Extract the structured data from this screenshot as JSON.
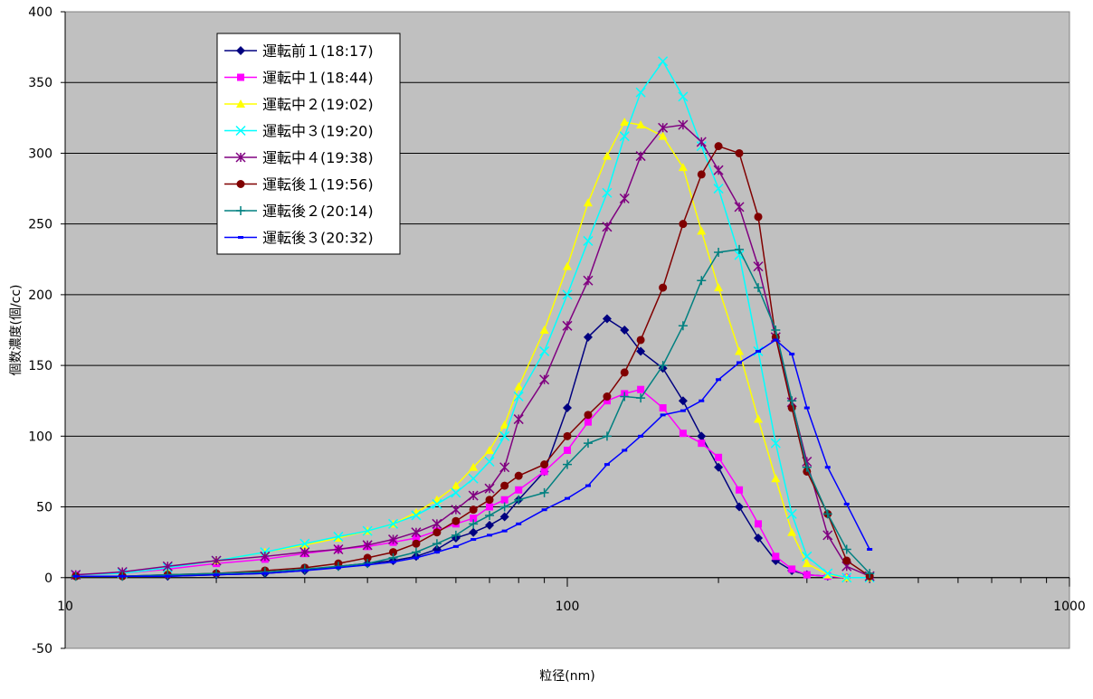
{
  "chart_data": {
    "type": "scatter",
    "xscale": "log",
    "xlim": [
      10,
      1000
    ],
    "ylim": [
      -50,
      400
    ],
    "xlabel": "粒径(nm)",
    "ylabel": "個数濃度(個/cc)",
    "xticks": [
      "10",
      "100",
      "1000"
    ],
    "yticks": [
      "-50",
      "0",
      "50",
      "100",
      "150",
      "200",
      "250",
      "300",
      "350",
      "400"
    ],
    "grid": true,
    "legend_position": "top-left",
    "plot_background": "#c0c0c0",
    "series": [
      {
        "name": "運転前１(18:17)",
        "color": "#000080",
        "marker": "diamond",
        "x": [
          10.5,
          13,
          16,
          20,
          25,
          30,
          35,
          40,
          45,
          50,
          55,
          60,
          65,
          70,
          75,
          80,
          90,
          100,
          110,
          120,
          130,
          140,
          155,
          170,
          185,
          200,
          220,
          240,
          260,
          280,
          300,
          330,
          360,
          400
        ],
        "y": [
          1,
          1,
          1,
          2,
          3,
          5,
          8,
          10,
          12,
          15,
          20,
          28,
          32,
          37,
          43,
          55,
          75,
          120,
          170,
          183,
          175,
          160,
          148,
          125,
          100,
          78,
          50,
          28,
          12,
          5,
          2,
          1,
          0,
          0
        ]
      },
      {
        "name": "運転中１(18:44)",
        "color": "#ff00ff",
        "marker": "square",
        "x": [
          10.5,
          13,
          16,
          20,
          25,
          30,
          35,
          40,
          45,
          50,
          55,
          60,
          65,
          70,
          75,
          80,
          90,
          100,
          110,
          120,
          130,
          140,
          155,
          170,
          185,
          200,
          220,
          240,
          260,
          280,
          300,
          330,
          360,
          400
        ],
        "y": [
          2,
          3,
          6,
          10,
          13,
          17,
          20,
          22,
          25,
          28,
          33,
          38,
          42,
          50,
          55,
          62,
          75,
          90,
          110,
          125,
          130,
          133,
          120,
          102,
          95,
          85,
          62,
          38,
          15,
          6,
          2,
          1,
          0,
          0
        ]
      },
      {
        "name": "運転中２(19:02)",
        "color": "#ffff00",
        "marker": "triangle",
        "x": [
          10.5,
          13,
          16,
          20,
          25,
          30,
          35,
          40,
          45,
          50,
          55,
          60,
          65,
          70,
          75,
          80,
          90,
          100,
          110,
          120,
          130,
          140,
          155,
          170,
          185,
          200,
          220,
          240,
          260,
          280,
          300,
          330,
          360,
          400
        ],
        "y": [
          2,
          3,
          7,
          12,
          18,
          23,
          28,
          33,
          38,
          46,
          55,
          65,
          78,
          90,
          108,
          135,
          175,
          220,
          265,
          298,
          322,
          320,
          312,
          290,
          245,
          205,
          160,
          112,
          70,
          32,
          10,
          2,
          0,
          0
        ]
      },
      {
        "name": "運転中３(19:20)",
        "color": "#00ffff",
        "marker": "x",
        "x": [
          10.5,
          13,
          16,
          20,
          25,
          30,
          35,
          40,
          45,
          50,
          55,
          60,
          65,
          70,
          75,
          80,
          90,
          100,
          110,
          120,
          130,
          140,
          155,
          170,
          185,
          200,
          220,
          240,
          260,
          280,
          300,
          330,
          360,
          400
        ],
        "y": [
          2,
          3,
          7,
          12,
          18,
          24,
          29,
          33,
          38,
          44,
          52,
          60,
          70,
          82,
          100,
          128,
          160,
          200,
          238,
          272,
          312,
          343,
          365,
          340,
          305,
          275,
          228,
          160,
          95,
          45,
          15,
          3,
          0,
          0
        ]
      },
      {
        "name": "運転中４(19:38)",
        "color": "#800080",
        "marker": "star",
        "x": [
          10.5,
          13,
          16,
          20,
          25,
          30,
          35,
          40,
          45,
          50,
          55,
          60,
          65,
          70,
          75,
          80,
          90,
          100,
          110,
          120,
          130,
          140,
          155,
          170,
          185,
          200,
          220,
          240,
          260,
          280,
          300,
          330,
          360,
          400
        ],
        "y": [
          2,
          4,
          8,
          12,
          15,
          18,
          20,
          23,
          27,
          32,
          38,
          48,
          58,
          63,
          78,
          112,
          140,
          178,
          210,
          248,
          268,
          298,
          318,
          320,
          308,
          288,
          262,
          220,
          170,
          124,
          82,
          30,
          8,
          1
        ]
      },
      {
        "name": "運転後１(19:56)",
        "color": "#800000",
        "marker": "circle",
        "x": [
          10.5,
          13,
          16,
          20,
          25,
          30,
          35,
          40,
          45,
          50,
          55,
          60,
          65,
          70,
          75,
          80,
          90,
          100,
          110,
          120,
          130,
          140,
          155,
          170,
          185,
          200,
          220,
          240,
          260,
          280,
          300,
          330,
          360,
          400
        ],
        "y": [
          1,
          1,
          2,
          3,
          5,
          7,
          10,
          14,
          18,
          24,
          32,
          40,
          48,
          55,
          65,
          72,
          80,
          100,
          115,
          128,
          145,
          168,
          205,
          250,
          285,
          305,
          300,
          255,
          170,
          120,
          75,
          45,
          12,
          1
        ]
      },
      {
        "name": "運転後２(20:14)",
        "color": "#008080",
        "marker": "plus",
        "x": [
          10.5,
          13,
          16,
          20,
          25,
          30,
          35,
          40,
          45,
          50,
          55,
          60,
          65,
          70,
          75,
          80,
          90,
          100,
          110,
          120,
          130,
          140,
          155,
          170,
          185,
          200,
          220,
          240,
          260,
          280,
          300,
          330,
          360,
          400
        ],
        "y": [
          1,
          1,
          2,
          3,
          4,
          6,
          8,
          10,
          14,
          18,
          24,
          30,
          38,
          44,
          50,
          55,
          60,
          80,
          95,
          100,
          128,
          127,
          150,
          178,
          210,
          230,
          232,
          205,
          175,
          125,
          78,
          45,
          20,
          3
        ]
      },
      {
        "name": "運転後３(20:32)",
        "color": "#0000ff",
        "marker": "dash",
        "x": [
          10.5,
          13,
          16,
          20,
          25,
          30,
          35,
          40,
          45,
          50,
          55,
          60,
          65,
          70,
          75,
          80,
          90,
          100,
          110,
          120,
          130,
          140,
          155,
          170,
          185,
          200,
          220,
          240,
          260,
          280,
          300,
          330,
          360,
          400
        ],
        "y": [
          1,
          1,
          1,
          2,
          3,
          5,
          7,
          9,
          11,
          14,
          18,
          22,
          27,
          30,
          33,
          38,
          48,
          56,
          65,
          80,
          90,
          100,
          115,
          118,
          125,
          140,
          152,
          160,
          168,
          158,
          120,
          78,
          52,
          20
        ]
      }
    ]
  }
}
